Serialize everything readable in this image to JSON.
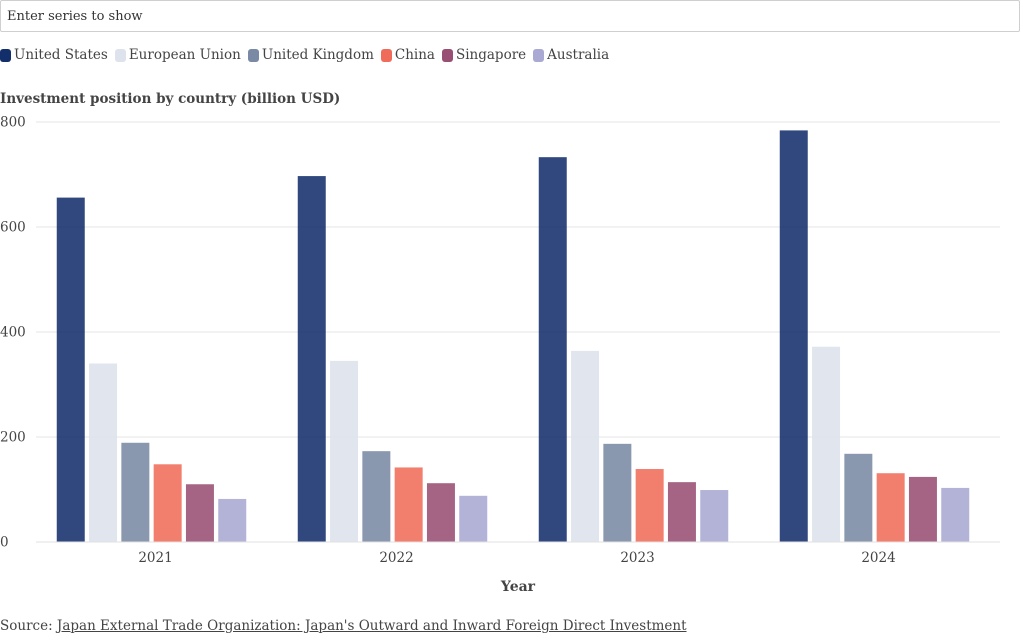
{
  "search": {
    "placeholder": "Enter series to show"
  },
  "chart_data": {
    "type": "bar",
    "title": "Investment position by country (billion USD)",
    "xlabel": "Year",
    "ylabel": "",
    "categories": [
      "2021",
      "2022",
      "2023",
      "2024"
    ],
    "ylim": [
      0,
      800
    ],
    "yticks": [
      0,
      200,
      400,
      600,
      800
    ],
    "grid": true,
    "legend_position": "top-left",
    "series": [
      {
        "name": "United States",
        "color": "#132f6b",
        "values": [
          656,
          697,
          733,
          784
        ]
      },
      {
        "name": "European Union",
        "color": "#dde2ec",
        "values": [
          340,
          345,
          364,
          372
        ]
      },
      {
        "name": "United Kingdom",
        "color": "#7a8aa4",
        "values": [
          189,
          173,
          187,
          168
        ]
      },
      {
        "name": "China",
        "color": "#f06c5a",
        "values": [
          148,
          142,
          139,
          131
        ]
      },
      {
        "name": "Singapore",
        "color": "#994f73",
        "values": [
          110,
          112,
          114,
          124
        ]
      },
      {
        "name": "Australia",
        "color": "#a9a9d3",
        "values": [
          82,
          88,
          99,
          103
        ]
      }
    ]
  },
  "source": {
    "prefix": "Source:",
    "link_text": "Japan External Trade Organization: Japan's Outward and Inward Foreign Direct Investment"
  }
}
